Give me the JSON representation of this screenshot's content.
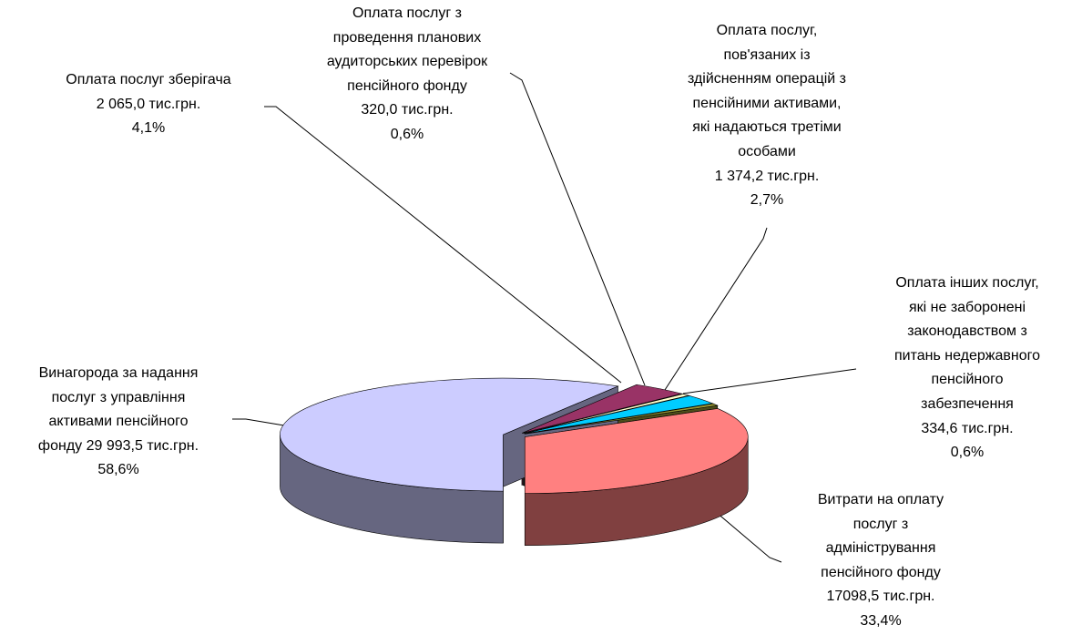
{
  "chart_data": {
    "type": "pie3d",
    "categories": [
      "Винагорода  за надання\nпослуг з управління\nактивами пенсійного\nфонду",
      "Оплата послуг зберігача",
      "Оплата послуг з\nпроведення планових\nаудиторських перевірок\nпенсійного фонду",
      "Оплата послуг,\nпов'язаних із\nздійсненням операцій з\nпенсійними активами,\nякі надаються третіми\nособами",
      "Оплата інших послуг,\nякі не заборонені\nзаконодавством з\nпитань недержавного\nпенсійного\nзабезпечення",
      "Витрати на оплату\nпослуг з\nадміністрування\nпенсійного фонду"
    ],
    "values": [
      58.6,
      4.1,
      0.6,
      2.7,
      0.6,
      33.4
    ],
    "value_labels": [
      "58,6%",
      "4,1%",
      "0,6%",
      "2,7%",
      "0,6%",
      "33,4%"
    ],
    "amounts": [
      29993.5,
      2065.0,
      320.0,
      1374.2,
      334.6,
      17098.5
    ],
    "amount_labels": [
      "29 993,5 тис.грн.",
      "2 065,0 тис.грн.",
      "320,0  тис.грн.",
      "1 374,2 тис.грн.",
      "334,6 тис.грн.",
      "17098,5 тис.грн."
    ],
    "colors": [
      "#ccccff",
      "#993366",
      "#ffffcc",
      "#00ccff",
      "#999933",
      "#ff8080"
    ]
  }
}
